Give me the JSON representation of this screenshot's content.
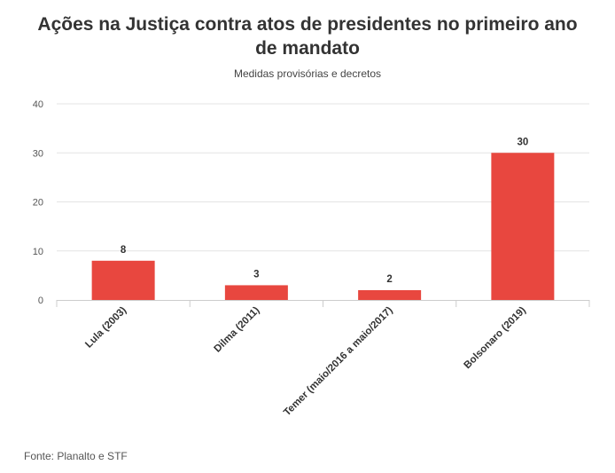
{
  "chart_data": {
    "type": "bar",
    "title": "Ações na Justiça contra atos de presidentes no primeiro ano de mandato",
    "subtitle": "Medidas provisórias e decretos",
    "categories": [
      "Lula (2003)",
      "Dilma (2011)",
      "Temer (maio/2016 a maio/2017)",
      "Bolsonaro (2019)"
    ],
    "values": [
      8,
      3,
      2,
      30
    ],
    "ylim": [
      0,
      40
    ],
    "yticks": [
      0,
      10,
      20,
      30,
      40
    ],
    "grid": true,
    "data_labels": true,
    "bar_color": "#e8473f",
    "source": "Fonte: Planalto e STF"
  }
}
